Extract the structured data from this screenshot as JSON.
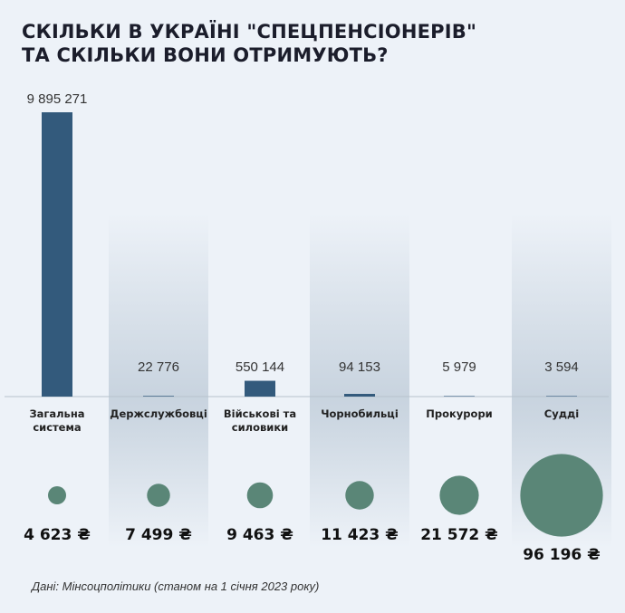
{
  "chart_data": {
    "type": "bar",
    "title_lines": [
      "СКІЛЬКИ В УКРАЇНІ \"СПЕЦПЕНСІОНЕРІВ\"",
      "ТА СКІЛЬКИ ВОНИ ОТРИМУЮТЬ?"
    ],
    "categories": [
      "Загальна система",
      "Держслужбовці",
      "Військові та силовики",
      "Чорнобильці",
      "Прокурори",
      "Судді"
    ],
    "category_lines": [
      [
        "Загальна",
        "система"
      ],
      [
        "Держслужбовці"
      ],
      [
        "Військові та",
        "силовики"
      ],
      [
        "Чорнобильці"
      ],
      [
        "Прокурори"
      ],
      [
        "Судді"
      ]
    ],
    "series": [
      {
        "values": [
          9895271,
          22776,
          550144,
          94153,
          5979,
          3594
        ],
        "labels": [
          "9 895 271",
          "22 776",
          "550 144",
          "94 153",
          "5 979",
          "3 594"
        ],
        "mark": "bar",
        "color": "#335a7c"
      },
      {
        "values": [
          4623,
          7499,
          9463,
          11423,
          21572,
          96196
        ],
        "labels": [
          "4 623 ₴",
          "7 499 ₴",
          "9 463 ₴",
          "11 423 ₴",
          "21 572 ₴",
          "96 196 ₴"
        ],
        "mark": "circle",
        "color": "#5a8677"
      }
    ],
    "source": "Дані: Мінсоцполітики (станом на 1 січня 2023 року)"
  }
}
